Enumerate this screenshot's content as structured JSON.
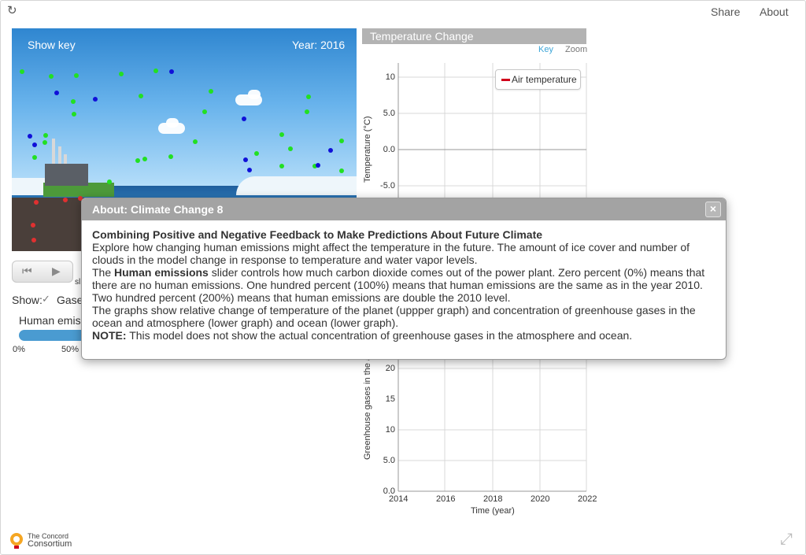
{
  "header": {
    "share": "Share",
    "about": "About"
  },
  "sim": {
    "show_key": "Show key",
    "year": "Year: 2016"
  },
  "controls": {
    "small_label": "sl"
  },
  "show_row": {
    "label": "Show:",
    "gases": "Gase"
  },
  "slider": {
    "label": "Human emiss",
    "ticks": [
      "0%",
      "50%"
    ]
  },
  "graph": {
    "title": "Temperature Change",
    "tabs": {
      "key": "Key",
      "zoom": "Zoom"
    },
    "legend": "Air temperature",
    "top_ylabel": "Temperature (°C)",
    "top_ticks": [
      "10",
      "5.0",
      "0.0",
      "-5.0"
    ],
    "bottom_ylabel": "Greenhouse gases in the a",
    "bottom_ticks": [
      "20",
      "15",
      "10",
      "5.0",
      "0.0"
    ],
    "x_ticks": [
      "2014",
      "2016",
      "2018",
      "2020",
      "2022"
    ],
    "xlabel": "Time (year)"
  },
  "dialog": {
    "title": "About: Climate Change 8",
    "heading": "Combining Positive and Negative Feedback to Make Predictions About Future Climate",
    "p1": "Explore how changing human emissions might affect the temperature in the future. The amount of ice cover and number of clouds in the model change in response to temperature and water vapor levels.",
    "p2_pre": "The ",
    "p2_bold": "Human emissions",
    "p2_post": " slider controls how much carbon dioxide comes out of the power plant. Zero percent (0%) means that there are no human emissions. One hundred percent (100%) means that human emissions are the same as in the year 2010. Two hundred percent (200%) means that human emissions are double the 2010 level.",
    "p3": "The graphs show relative change of temperature of the planet (uppper graph) and concentration of greenhouse gases in the ocean and atmosphere (lower graph) and ocean (lower graph).",
    "note_bold": "NOTE:",
    "note_text": " This model does not show the actual concentration of greenhouse gases in the atmosphere and ocean."
  },
  "footer": {
    "logo_line1": "The Concord",
    "logo_line2": "Consortium"
  },
  "colors": {
    "accent": "#4a9bd1",
    "green_dot": "#22e022",
    "blue_dot": "#1010d8",
    "red_dot": "#e03030"
  }
}
